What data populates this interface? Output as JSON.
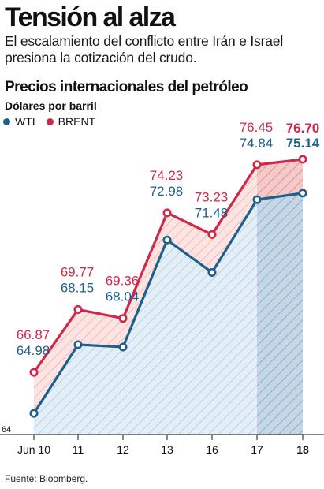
{
  "headline": "Tensión al alza",
  "deck": "El escalamiento del conflicto entre Irán e Israel presiona la cotización del crudo.",
  "source": "Fuente: Bloomberg.",
  "colors": {
    "wti": "#1f5f8b",
    "brent": "#d1284a"
  },
  "chart_data": {
    "type": "line",
    "title": "Precios internacionales del petróleo",
    "ylabel": "Dólares por barril",
    "categories": [
      "Jun 10",
      "11",
      "12",
      "13",
      "16",
      "17",
      "18"
    ],
    "series": [
      {
        "name": "WTI",
        "values": [
          64.98,
          68.15,
          68.04,
          72.98,
          71.48,
          74.84,
          75.14
        ],
        "labels": [
          "64.98",
          "68.15",
          "68.04",
          "72.98",
          "71.48",
          "74.84",
          "75.14"
        ]
      },
      {
        "name": "BRENT",
        "values": [
          66.87,
          69.77,
          69.36,
          74.23,
          73.23,
          76.45,
          76.7
        ],
        "labels": [
          "66.87",
          "69.77",
          "69.36",
          "74.23",
          "73.23",
          "76.45",
          "76.70"
        ]
      }
    ],
    "y_tick_labels": [
      "64"
    ],
    "ylim": [
      64,
      77.5
    ],
    "grid": false,
    "legend": "top-left"
  }
}
